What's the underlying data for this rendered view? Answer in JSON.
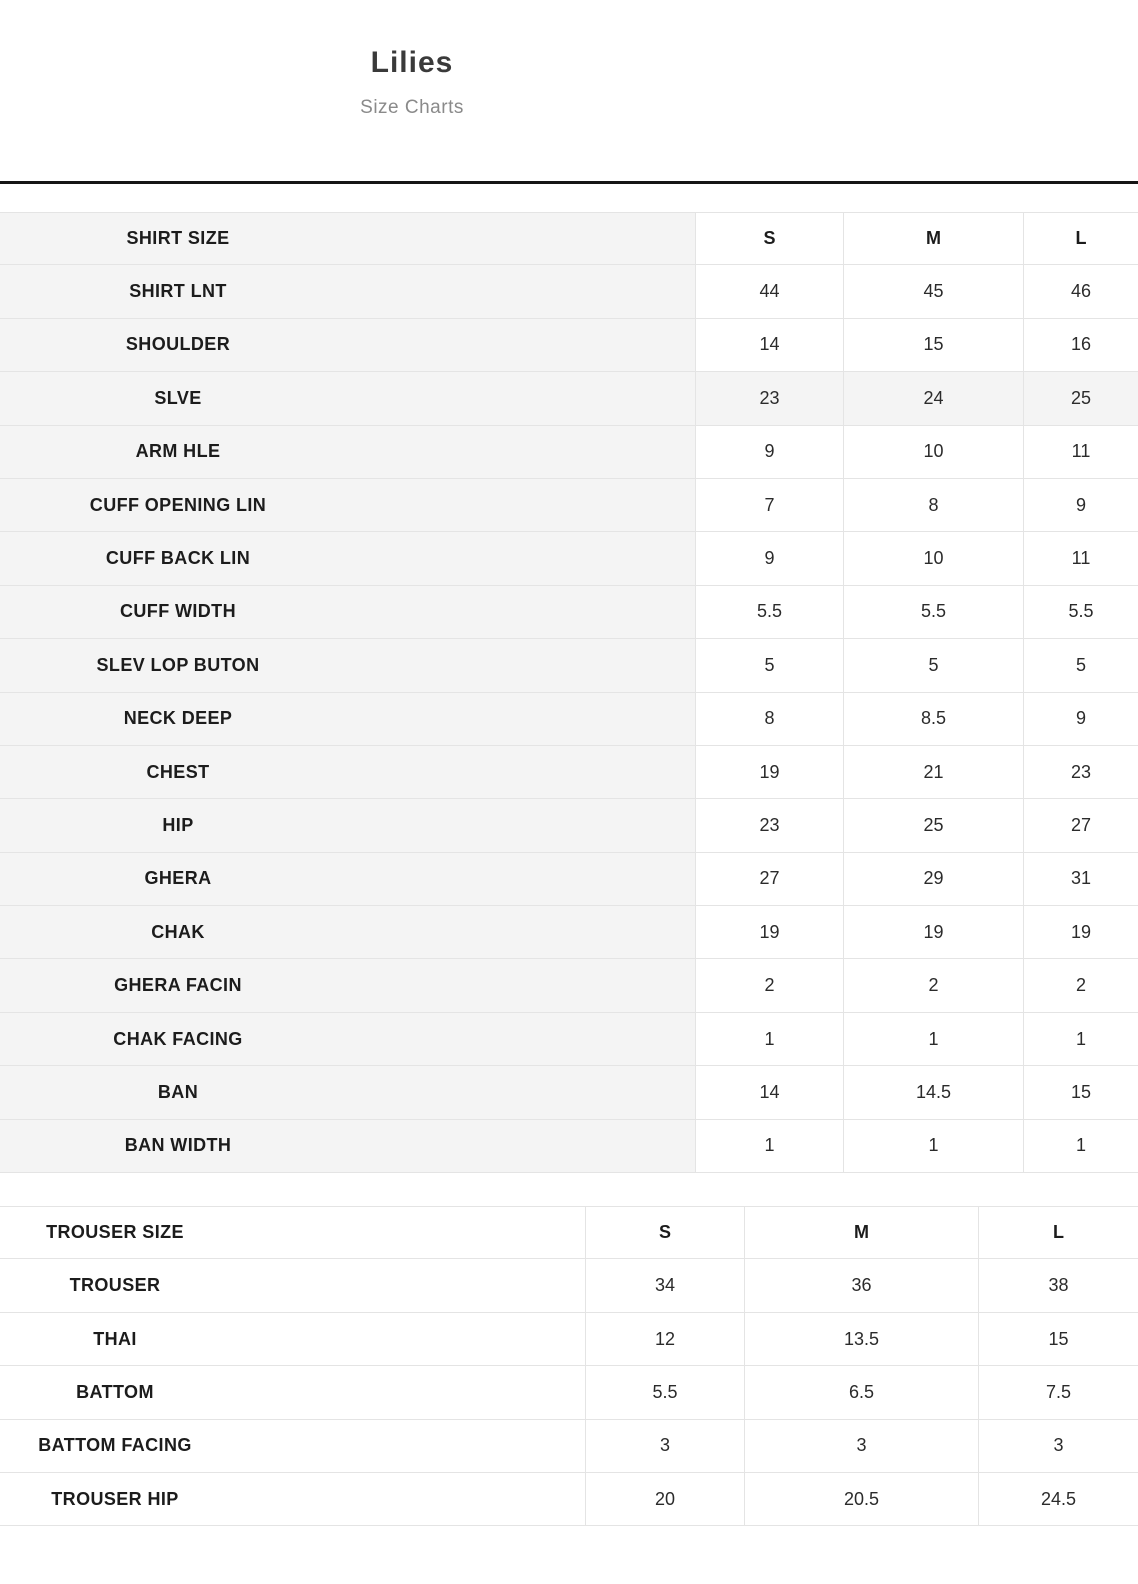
{
  "page": {
    "title": "Lilies",
    "subtitle": "Size Charts"
  },
  "colors": {
    "label_column_bg": "#f4f4f4",
    "shaded_row_bg": "#f4f4f4",
    "border": "#e4e4e4",
    "rule": "#151515",
    "title_text": "#3a3a3a",
    "subtitle_text": "#8a8a8a",
    "body_text": "#2b2b2b"
  },
  "shirt_table": {
    "header": {
      "label": "SHIRT SIZE",
      "sizes": [
        "S",
        "M",
        "L"
      ]
    },
    "rows": [
      {
        "label": "SHIRT LNT",
        "values": [
          "44",
          "45",
          "46"
        ],
        "shaded": false
      },
      {
        "label": "SHOULDER",
        "values": [
          "14",
          "15",
          "16"
        ],
        "shaded": false
      },
      {
        "label": "SLVE",
        "values": [
          "23",
          "24",
          "25"
        ],
        "shaded": true
      },
      {
        "label": "ARM HLE",
        "values": [
          "9",
          "10",
          "11"
        ],
        "shaded": false
      },
      {
        "label": "CUFF OPENING LIN",
        "values": [
          "7",
          "8",
          "9"
        ],
        "shaded": false
      },
      {
        "label": "CUFF BACK LIN",
        "values": [
          "9",
          "10",
          "11"
        ],
        "shaded": false
      },
      {
        "label": "CUFF WIDTH",
        "values": [
          "5.5",
          "5.5",
          "5.5"
        ],
        "shaded": false
      },
      {
        "label": "SLEV LOP BUTON",
        "values": [
          "5",
          "5",
          "5"
        ],
        "shaded": false
      },
      {
        "label": "NECK DEEP",
        "values": [
          "8",
          "8.5",
          "9"
        ],
        "shaded": false
      },
      {
        "label": "CHEST",
        "values": [
          "19",
          "21",
          "23"
        ],
        "shaded": false
      },
      {
        "label": "HIP",
        "values": [
          "23",
          "25",
          "27"
        ],
        "shaded": false
      },
      {
        "label": "GHERA",
        "values": [
          "27",
          "29",
          "31"
        ],
        "shaded": false
      },
      {
        "label": "CHAK",
        "values": [
          "19",
          "19",
          "19"
        ],
        "shaded": false
      },
      {
        "label": "GHERA FACIN",
        "values": [
          "2",
          "2",
          "2"
        ],
        "shaded": false
      },
      {
        "label": "CHAK FACING",
        "values": [
          "1",
          "1",
          "1"
        ],
        "shaded": false
      },
      {
        "label": "BAN",
        "values": [
          "14",
          "14.5",
          "15"
        ],
        "shaded": false
      },
      {
        "label": "BAN WIDTH",
        "values": [
          "1",
          "1",
          "1"
        ],
        "shaded": false
      }
    ]
  },
  "trouser_table": {
    "header": {
      "label": "TROUSER SIZE",
      "sizes": [
        "S",
        "M",
        "L"
      ]
    },
    "rows": [
      {
        "label": "TROUSER",
        "values": [
          "34",
          "36",
          "38"
        ],
        "shaded": false
      },
      {
        "label": "THAI",
        "values": [
          "12",
          "13.5",
          "15"
        ],
        "shaded": false
      },
      {
        "label": "BATTOM",
        "values": [
          "5.5",
          "6.5",
          "7.5"
        ],
        "shaded": false
      },
      {
        "label": "BATTOM FACING",
        "values": [
          "3",
          "3",
          "3"
        ],
        "shaded": false
      },
      {
        "label": "TROUSER HIP",
        "values": [
          "20",
          "20.5",
          "24.5"
        ],
        "shaded": false
      }
    ]
  }
}
